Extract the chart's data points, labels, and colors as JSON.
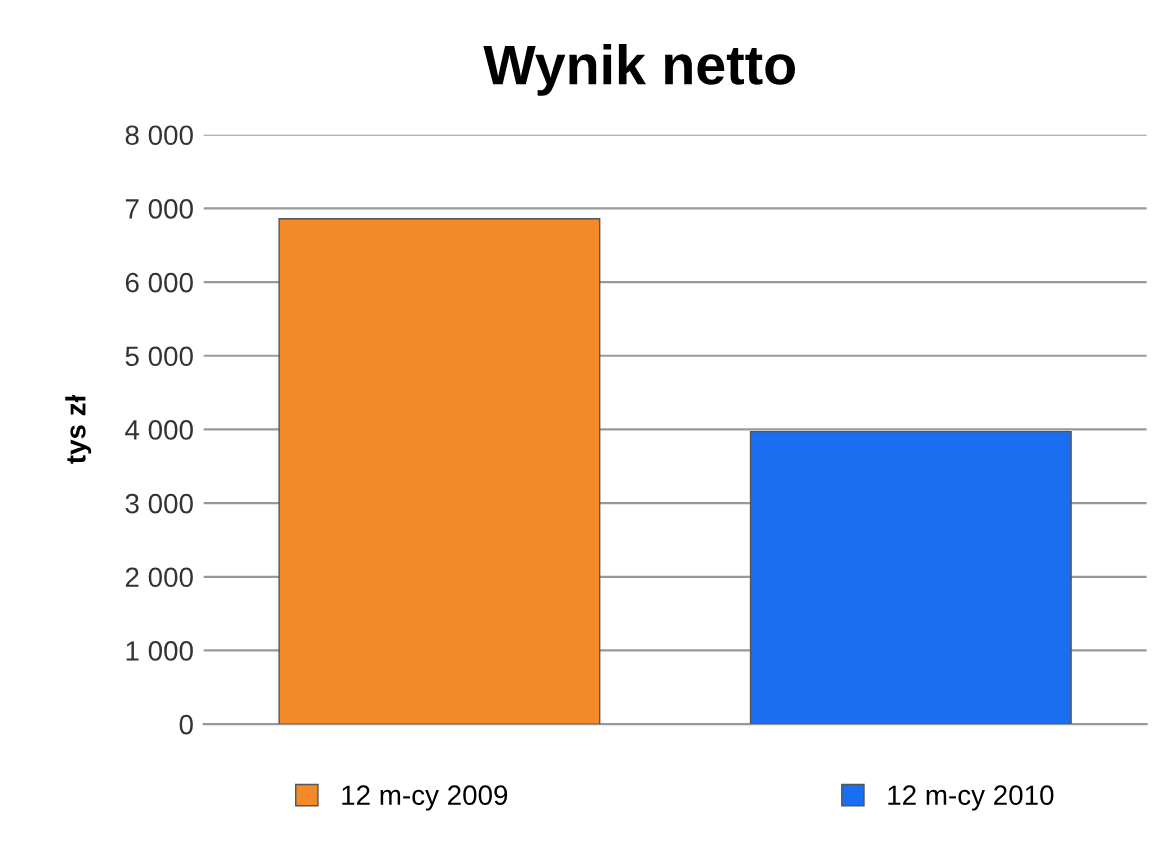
{
  "chart_data": {
    "type": "bar",
    "title": "Wynik netto",
    "ylabel": "tys zł",
    "categories": [
      null,
      null
    ],
    "series": [
      {
        "name": "12 m-cy 2009",
        "color": "#f28a2a",
        "values": [
          6860,
          null
        ]
      },
      {
        "name": "12 m-cy 2010",
        "color": "#1a6ff0",
        "values": [
          null,
          3970
        ]
      }
    ],
    "ylim": [
      0,
      8000
    ],
    "yticks": [
      {
        "value": 0,
        "label": "0"
      },
      {
        "value": 1000,
        "label": "1 000"
      },
      {
        "value": 2000,
        "label": "2 000"
      },
      {
        "value": 3000,
        "label": "3 000"
      },
      {
        "value": 4000,
        "label": "4 000"
      },
      {
        "value": 5000,
        "label": "5 000"
      },
      {
        "value": 6000,
        "label": "6 000"
      },
      {
        "value": 7000,
        "label": "7 000"
      },
      {
        "value": 8000,
        "label": "8 000"
      }
    ],
    "grid": "y",
    "legend": "bottom"
  }
}
